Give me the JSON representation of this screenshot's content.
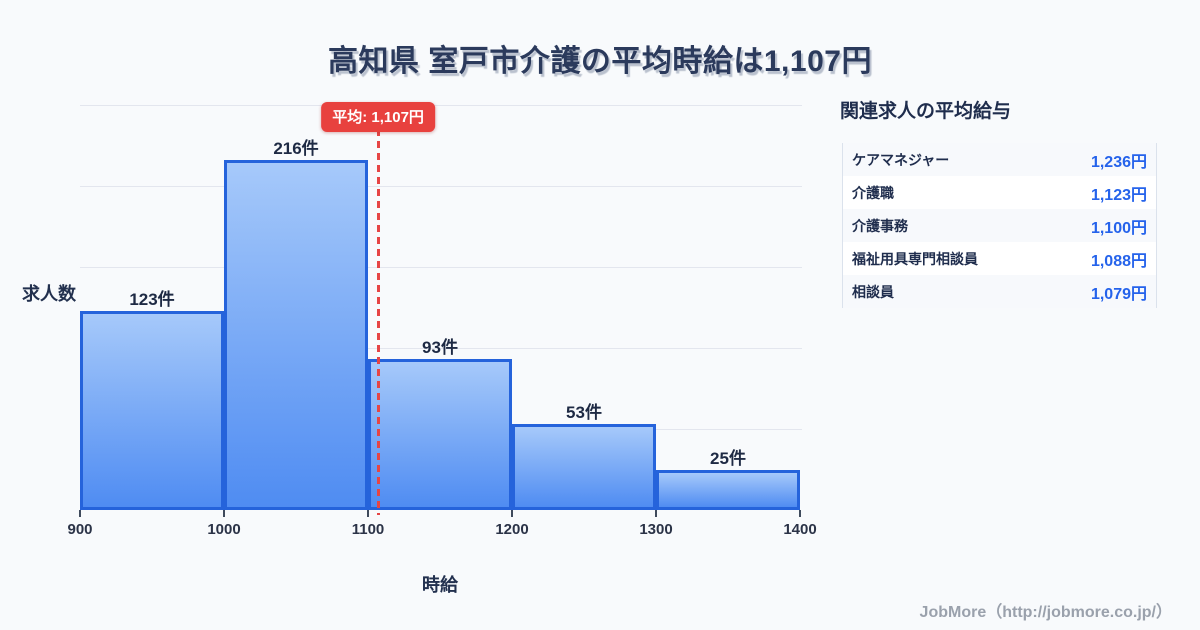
{
  "title": "高知県 室戸市介護の平均時給は1,107円",
  "chart_data": {
    "type": "bar",
    "subtype": "histogram",
    "bin_edges": [
      900,
      1000,
      1100,
      1200,
      1300,
      1400
    ],
    "tick_labels": [
      "900",
      "1000",
      "1100",
      "1200",
      "1300",
      "1400"
    ],
    "values": [
      123,
      216,
      93,
      53,
      25
    ],
    "bar_labels": [
      "123件",
      "216件",
      "93件",
      "53件",
      "25件"
    ],
    "xlabel": "時給",
    "ylabel": "求人数",
    "ylim": [
      0,
      250
    ],
    "gridline_step": 50,
    "grid": true,
    "legend": "none",
    "average": {
      "value": 1107,
      "label": "平均: 1,107円"
    },
    "colors": {
      "bar_fill_top": "#a6c9fa",
      "bar_fill_bottom": "#4f8cf2",
      "bar_border": "#2563db",
      "average_line": "#e64545",
      "average_badge_bg": "#e8413e",
      "gridline": "#e3e6ee",
      "background": "#f8fafc"
    }
  },
  "side_panel": {
    "title": "関連求人の平均給与",
    "rows": [
      {
        "label": "ケアマネジャー",
        "value": "1,236円"
      },
      {
        "label": "介護職",
        "value": "1,123円"
      },
      {
        "label": "介護事務",
        "value": "1,100円"
      },
      {
        "label": "福祉用具専門相談員",
        "value": "1,088円"
      },
      {
        "label": "相談員",
        "value": "1,079円"
      }
    ],
    "value_color": "#2563eb"
  },
  "footer": {
    "credit": "JobMore（http://jobmore.co.jp/）"
  }
}
